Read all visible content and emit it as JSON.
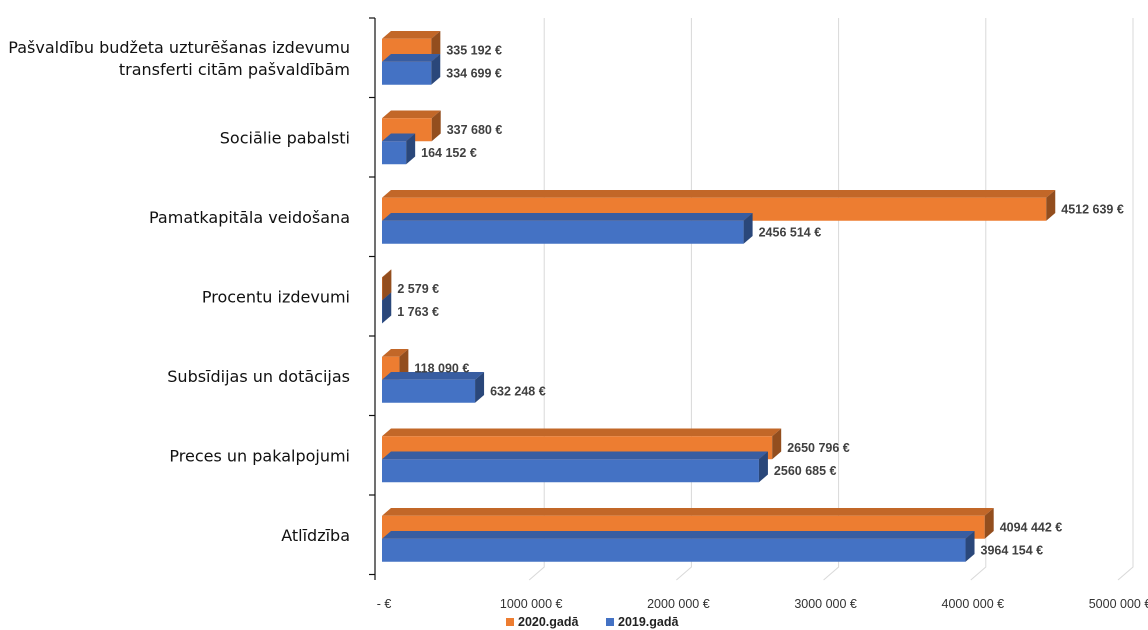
{
  "chart_data": {
    "type": "bar",
    "orientation": "horizontal",
    "categories": [
      "Pašvaldību budžeta uzturēšanas izdevumu transferti citām pašvaldībām",
      "Sociālie pabalsti",
      "Pamatkapitāla veidošana",
      "Procentu izdevumi",
      "Subsīdijas un dotācijas",
      "Preces un pakalpojumi",
      "Atlīdzība"
    ],
    "category_lines": [
      [
        "Pašvaldību budžeta uzturēšanas izdevumu",
        "transferti citām pašvaldībām"
      ],
      [
        "Sociālie pabalsti"
      ],
      [
        "Pamatkapitāla veidošana"
      ],
      [
        "Procentu izdevumi"
      ],
      [
        "Subsīdijas un dotācijas"
      ],
      [
        "Preces un pakalpojumi"
      ],
      [
        "Atlīdzība"
      ]
    ],
    "series": [
      {
        "name": "2020.gadā",
        "color": "#ED7D31",
        "values": [
          335192,
          337680,
          4512639,
          2579,
          118090,
          2650796,
          4094442
        ],
        "labels": [
          "335 192 €",
          "337 680 €",
          "4512 639 €",
          "2 579 €",
          "118 090 €",
          "2650 796 €",
          "4094 442 €"
        ]
      },
      {
        "name": "2019.gadā",
        "color": "#4472C4",
        "values": [
          334699,
          164152,
          2456514,
          1763,
          632248,
          2560685,
          3964154
        ],
        "labels": [
          "334 699 €",
          "164 152 €",
          "2456 514 €",
          "1 763 €",
          "632 248 €",
          "2560 685 €",
          "3964 154 €"
        ]
      }
    ],
    "xlim": [
      0,
      5000000
    ],
    "xticks": [
      0,
      1000000,
      2000000,
      3000000,
      4000000,
      5000000
    ],
    "xtick_labels": [
      "-  €",
      "1000 000 €",
      "2000 000 €",
      "3000 000 €",
      "4000 000 €",
      "5000 000 €"
    ],
    "grid": true,
    "legend": "bottom",
    "title": "",
    "xlabel": "",
    "ylabel": ""
  }
}
